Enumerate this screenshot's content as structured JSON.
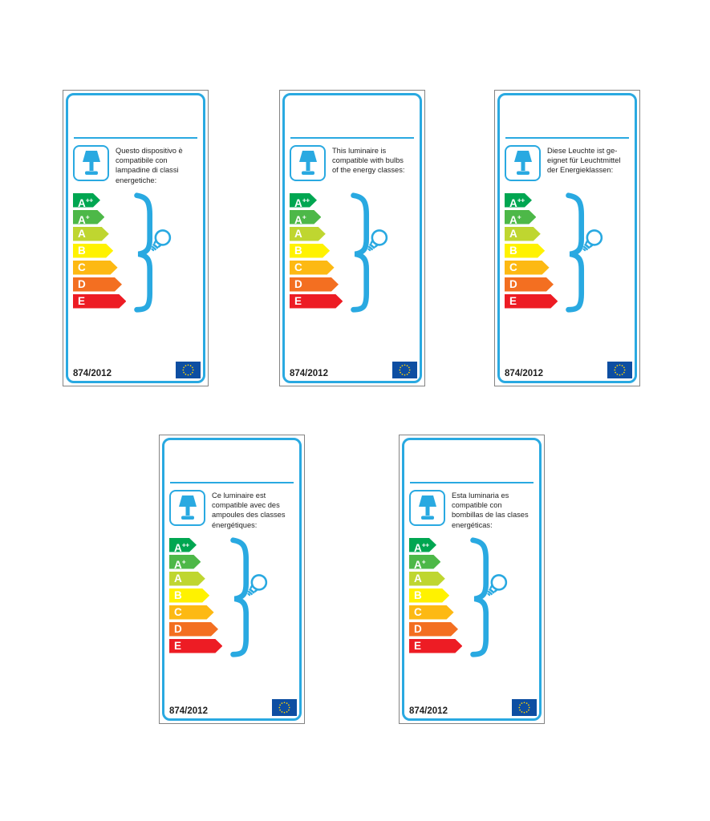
{
  "regulation": "874/2012",
  "colors": {
    "blue": "#29A9E1",
    "text": "#1F1F1F",
    "frame_gray": "#848484",
    "eu_flag_blue": "#0D4EA2",
    "eu_star_yellow": "#FFD500"
  },
  "energy_classes": [
    {
      "name": "A++",
      "base": "A",
      "sup": "++",
      "color": "#00A651"
    },
    {
      "name": "A+",
      "base": "A",
      "sup": "+",
      "color": "#4DB848"
    },
    {
      "name": "A",
      "base": "A",
      "sup": "",
      "color": "#BFD630"
    },
    {
      "name": "B",
      "base": "B",
      "sup": "",
      "color": "#FFF200"
    },
    {
      "name": "C",
      "base": "C",
      "sup": "",
      "color": "#FDB913"
    },
    {
      "name": "D",
      "base": "D",
      "sup": "",
      "color": "#F36F21"
    },
    {
      "name": "E",
      "base": "E",
      "sup": "",
      "color": "#ED1C24"
    }
  ],
  "labels": [
    {
      "lang": "it",
      "text": [
        "Questo dispositivo è",
        "compatibile con",
        "lampadine di classi",
        "energetiche:"
      ]
    },
    {
      "lang": "en",
      "text": [
        "This luminaire is",
        "compatible with bulbs",
        "of the energy classes:"
      ]
    },
    {
      "lang": "de",
      "text": [
        "Diese Leuchte ist ge-",
        "eignet für Leuchtmittel",
        "der Energieklassen:"
      ]
    },
    {
      "lang": "fr",
      "text": [
        "Ce luminaire est",
        "compatible avec des",
        "ampoules des classes",
        "énergétiques:"
      ]
    },
    {
      "lang": "es",
      "text": [
        "Esta luminaria es",
        "compatible con",
        "bombillas de las clases",
        "energéticas:"
      ]
    }
  ]
}
